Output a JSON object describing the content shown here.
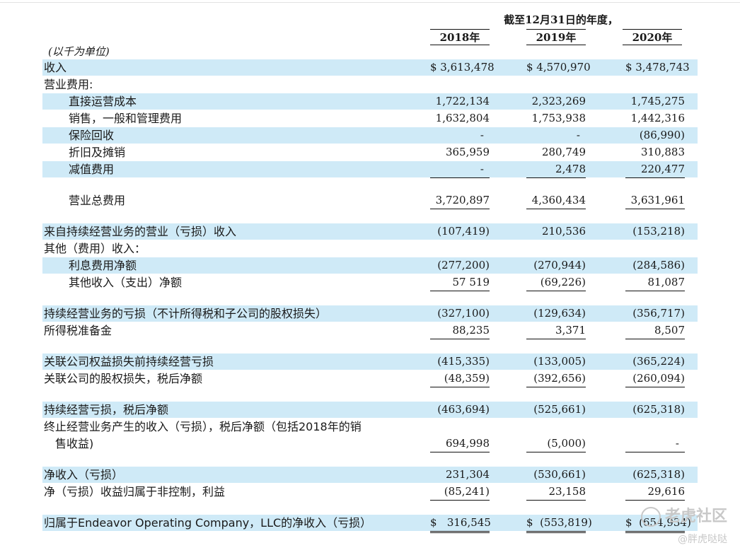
{
  "header": {
    "period": "截至12月31日的年度，",
    "years": [
      "2018年",
      "2019年",
      "2020年"
    ],
    "unit": "(以千为单位)"
  },
  "rows": [
    {
      "label": "收入",
      "indent": false,
      "band": true,
      "v1": "$ 3,613,478",
      "v2": "$ 4,570,970",
      "v3": "$ 3,478,743"
    },
    {
      "label": "营业费用:",
      "indent": false,
      "band": false,
      "v1": "",
      "v2": "",
      "v3": ""
    },
    {
      "label": "直接运营成本",
      "indent": true,
      "band": true,
      "v1": "1,722,134",
      "v2": "2,323,269",
      "v3": "1,745,275"
    },
    {
      "label": "销售，一般和管理费用",
      "indent": true,
      "band": false,
      "v1": "1,632,804",
      "v2": "1,753,938",
      "v3": "1,442,316"
    },
    {
      "label": "保险回收",
      "indent": true,
      "band": true,
      "v1": "-",
      "v2": "-",
      "v3": "(86,990)"
    },
    {
      "label": "折旧及摊销",
      "indent": true,
      "band": false,
      "v1": "365,959",
      "v2": "280,749",
      "v3": "310,883"
    },
    {
      "label": "减值费用",
      "indent": true,
      "band": true,
      "v1": "-",
      "v2": "2,478",
      "v3": "220,477"
    },
    {
      "label": "营业总费用",
      "indent": true,
      "band": false,
      "v1": "3,720,897",
      "v2": "4,360,434",
      "v3": "3,631,961"
    },
    {
      "label": "来自持续经营业务的营业（亏损）收入",
      "indent": false,
      "band": true,
      "v1": "(107,419)",
      "v2": "210,536",
      "v3": "(153,218)"
    },
    {
      "label": "其他（费用）收入：",
      "indent": false,
      "band": false,
      "v1": "",
      "v2": "",
      "v3": ""
    },
    {
      "label": "利息费用净额",
      "indent": true,
      "band": true,
      "v1": "(277,200)",
      "v2": "(270,944)",
      "v3": "(284,586)"
    },
    {
      "label": "其他收入（支出）净额",
      "indent": true,
      "band": false,
      "v1": "57 519",
      "v2": "(69,226)",
      "v3": "81,087"
    },
    {
      "label": "持续经营业务的亏损（不计所得税和子公司的股权损失）",
      "indent": false,
      "band": true,
      "v1": "(327,100)",
      "v2": "(129,634)",
      "v3": "(356,717)"
    },
    {
      "label": "所得税准备金",
      "indent": false,
      "band": false,
      "v1": "88,235",
      "v2": "3,371",
      "v3": "8,507"
    },
    {
      "label": "关联公司权益损失前持续经营亏损",
      "indent": false,
      "band": true,
      "v1": "(415,335)",
      "v2": "(133,005)",
      "v3": "(365,224)"
    },
    {
      "label": "关联公司的股权损失，税后净额",
      "indent": false,
      "band": false,
      "v1": "(48,359)",
      "v2": "(392,656)",
      "v3": "(260,094)"
    },
    {
      "label": "持续经营亏损，税后净额",
      "indent": false,
      "band": true,
      "v1": "(463,694)",
      "v2": "(525,661)",
      "v3": "(625,318)"
    },
    {
      "label": "终止经营业务产生的收入（亏损），税后净额（包括2018年的销",
      "label2": "售收益)",
      "indent": false,
      "band": false,
      "v1": "694,998",
      "v2": "(5,000)",
      "v3": "-"
    },
    {
      "label": "净收入（亏损）",
      "indent": false,
      "band": true,
      "v1": "231,304",
      "v2": "(530,661)",
      "v3": "(625,318)"
    },
    {
      "label": "净（亏损）收益归属于非控制，利益",
      "indent": false,
      "band": false,
      "v1": "(85,241)",
      "v2": "23,158",
      "v3": "29,616"
    },
    {
      "label": "归属于Endeavor Operating Company，LLC的净收入（亏损）",
      "indent": false,
      "band": true,
      "v1": "$   316,545",
      "v2": "$  (553,819)",
      "v3": "$  (654,934)"
    }
  ],
  "watermark": {
    "brand": "老虎社区",
    "handle": "@胖虎哒哒"
  }
}
